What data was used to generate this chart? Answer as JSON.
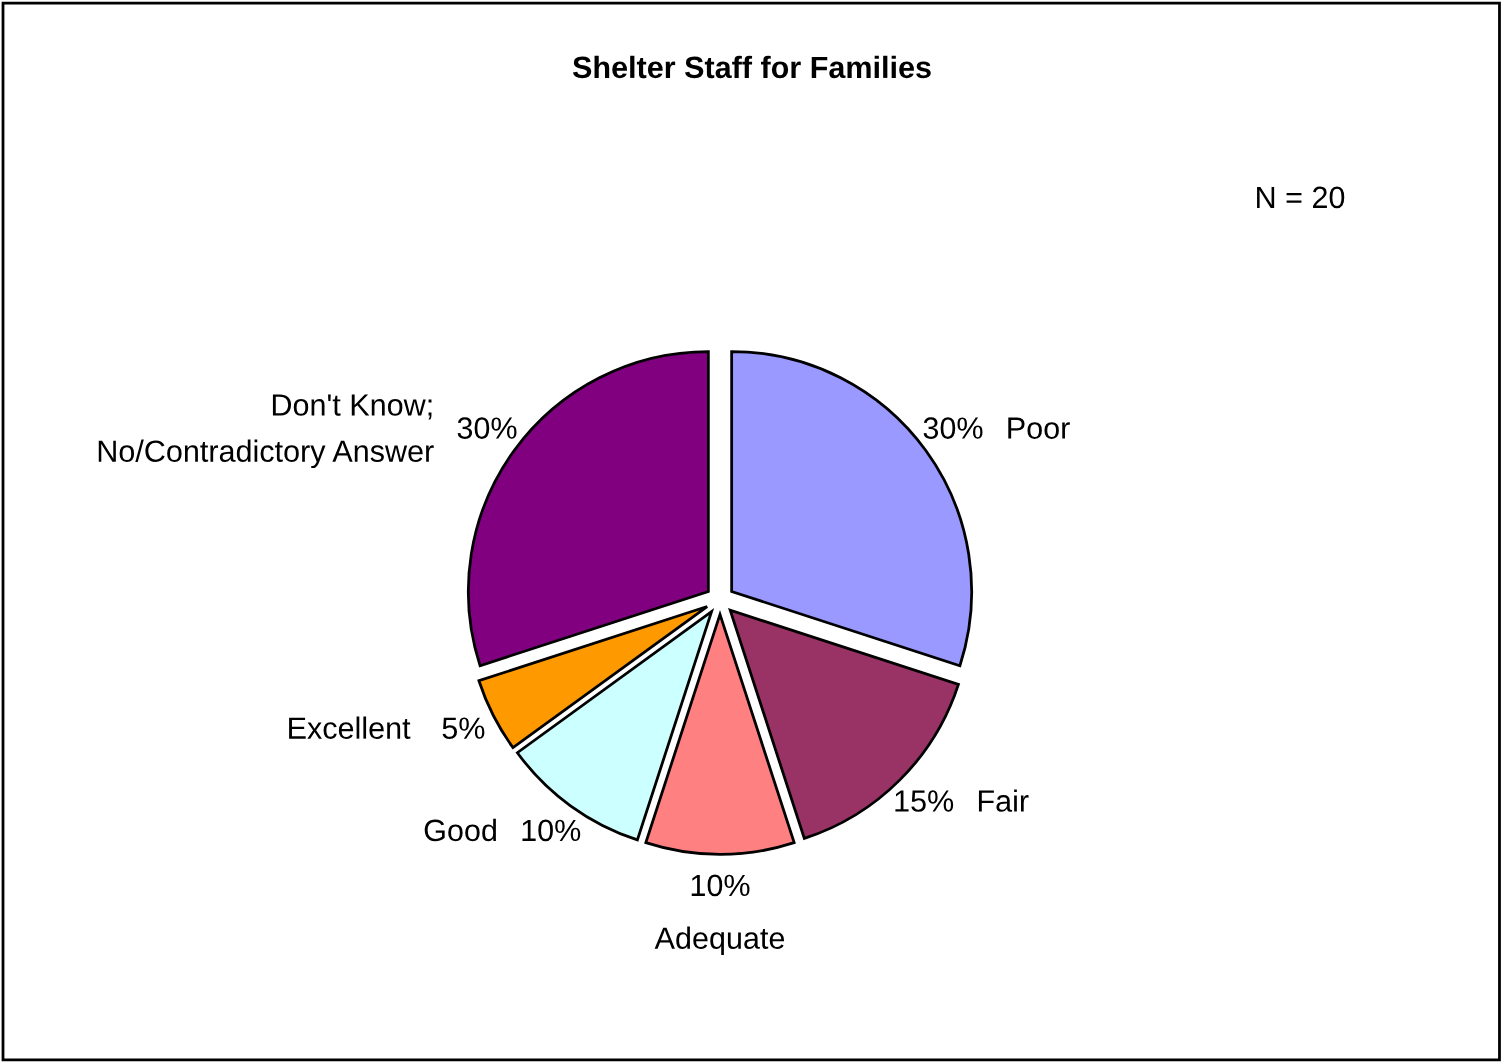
{
  "chart_data": {
    "type": "pie",
    "title": "Shelter Staff for Families",
    "categories": [
      "Poor",
      "Fair",
      "Adequate",
      "Good",
      "Excellent",
      "Don't Know;\nNo/Contradictory Answer"
    ],
    "values": [
      30,
      15,
      10,
      10,
      5,
      30
    ],
    "value_labels": [
      "30%",
      "15%",
      "10%",
      "10%",
      "5%",
      "30%"
    ],
    "colors": [
      "#9999ff",
      "#993366",
      "#ff8080",
      "#ccffff",
      "#ff9900",
      "#800080"
    ],
    "annotations": [
      "N = 20"
    ]
  }
}
